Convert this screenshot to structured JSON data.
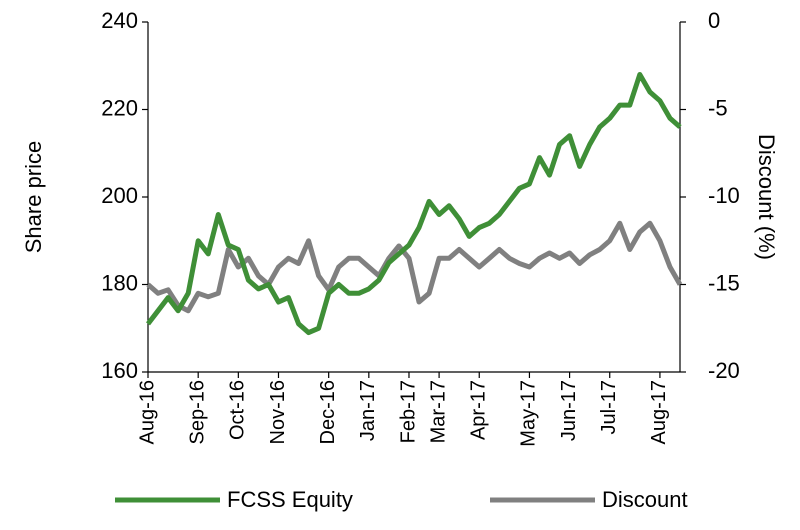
{
  "chart_data": {
    "type": "line",
    "categories": [
      "Aug-16",
      null,
      null,
      null,
      null,
      "Sep-16",
      null,
      null,
      null,
      "Oct-16",
      null,
      null,
      null,
      "Nov-16",
      null,
      null,
      null,
      null,
      "Dec-16",
      null,
      null,
      null,
      "Jan-17",
      null,
      null,
      null,
      "Feb-17",
      null,
      null,
      "Mar-17",
      null,
      null,
      null,
      "Apr-17",
      null,
      null,
      null,
      null,
      "May-17",
      null,
      null,
      null,
      "Jun-17",
      null,
      null,
      null,
      "Jul-17",
      null,
      null,
      null,
      null,
      "Aug-17",
      null,
      null
    ],
    "y_label": "Share price",
    "y2_label": "Discount (%)",
    "ylim": [
      160,
      240
    ],
    "yticks": [
      160,
      180,
      200,
      220,
      240
    ],
    "y2lim": [
      -20,
      0
    ],
    "y2ticks": [
      -20,
      -15,
      -10,
      -5,
      0
    ],
    "legend": "bottom",
    "series": [
      {
        "name": "FCSS Equity",
        "color": "#3f8f37",
        "values": [
          171,
          174,
          177,
          174,
          178,
          190,
          187,
          196,
          189,
          188,
          181,
          179,
          180,
          176,
          177,
          171,
          169,
          170,
          178,
          180,
          178,
          178,
          179,
          181,
          185,
          187,
          189,
          193,
          199,
          196,
          198,
          195,
          191,
          193,
          194,
          196,
          199,
          202,
          203,
          209,
          205,
          212,
          214,
          207,
          212,
          216,
          218,
          221,
          221,
          228,
          224,
          222,
          218,
          216
        ]
      },
      {
        "name": "Discount",
        "color": "#808080",
        "axis": "y2",
        "values": [
          -15,
          -15.5,
          -15.3,
          -16.2,
          -16.5,
          -15.5,
          -15.7,
          -15.5,
          -13,
          -14,
          -13.5,
          -14.5,
          -15,
          -14,
          -13.5,
          -13.8,
          -12.5,
          -14.5,
          -15.3,
          -14,
          -13.5,
          -13.5,
          -14,
          -14.5,
          -13.5,
          -12.8,
          -13.5,
          -16,
          -15.5,
          -13.5,
          -13.5,
          -13,
          -13.5,
          -14,
          -13.5,
          -13,
          -13.5,
          -13.8,
          -14,
          -13.5,
          -13.2,
          -13.5,
          -13.2,
          -13.8,
          -13.3,
          -13,
          -12.5,
          -11.5,
          -13,
          -12,
          -11.5,
          -12.5,
          -14,
          -15
        ]
      }
    ]
  }
}
